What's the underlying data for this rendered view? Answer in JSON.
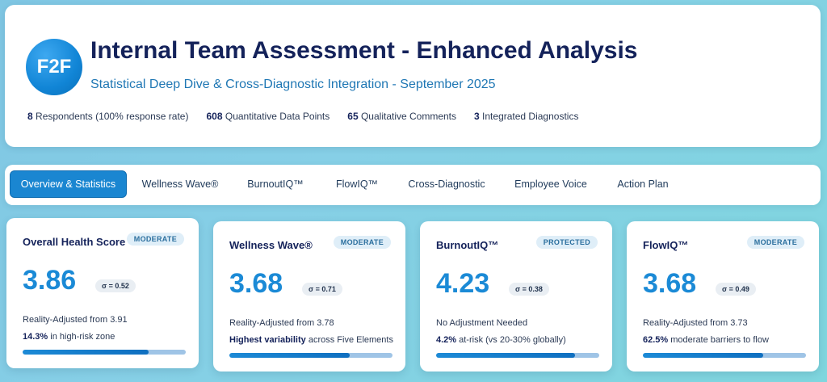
{
  "header": {
    "logo_text": "F2F",
    "title": "Internal Team Assessment - Enhanced Analysis",
    "subtitle": "Statistical Deep Dive & Cross-Diagnostic Integration - September 2025",
    "stats": [
      {
        "value": "8",
        "label": "Respondents (100% response rate)"
      },
      {
        "value": "608",
        "label": "Quantitative Data Points"
      },
      {
        "value": "65",
        "label": "Qualitative Comments"
      },
      {
        "value": "3",
        "label": "Integrated Diagnostics"
      }
    ]
  },
  "tabs": [
    {
      "label": "Overview & Statistics",
      "active": true
    },
    {
      "label": "Wellness Wave®",
      "active": false
    },
    {
      "label": "BurnoutIQ™",
      "active": false
    },
    {
      "label": "FlowIQ™",
      "active": false
    },
    {
      "label": "Cross-Diagnostic",
      "active": false
    },
    {
      "label": "Employee Voice",
      "active": false
    },
    {
      "label": "Action Plan",
      "active": false
    }
  ],
  "cards": [
    {
      "title": "Overall Health Score",
      "badge": "MODERATE",
      "value": "3.86",
      "sigma": "σ = 0.52",
      "adjustment": "Reality-Adjusted from 3.91",
      "note_bold": "14.3%",
      "note_rest": " in high-risk zone",
      "progress": 0.77
    },
    {
      "title": "Wellness Wave®",
      "badge": "MODERATE",
      "value": "3.68",
      "sigma": "σ = 0.71",
      "adjustment": "Reality-Adjusted from 3.78",
      "note_bold": "Highest variability",
      "note_rest": " across Five Elements",
      "progress": 0.74
    },
    {
      "title": "BurnoutIQ™",
      "badge": "PROTECTED",
      "value": "4.23",
      "sigma": "σ = 0.38",
      "adjustment": "No Adjustment Needed",
      "note_bold": "4.2%",
      "note_rest": " at-risk (vs 20-30% globally)",
      "progress": 0.85
    },
    {
      "title": "FlowIQ™",
      "badge": "MODERATE",
      "value": "3.68",
      "sigma": "σ = 0.49",
      "adjustment": "Reality-Adjusted from 3.73",
      "note_bold": "62.5%",
      "note_rest": " moderate barriers to flow",
      "progress": 0.74
    }
  ]
}
